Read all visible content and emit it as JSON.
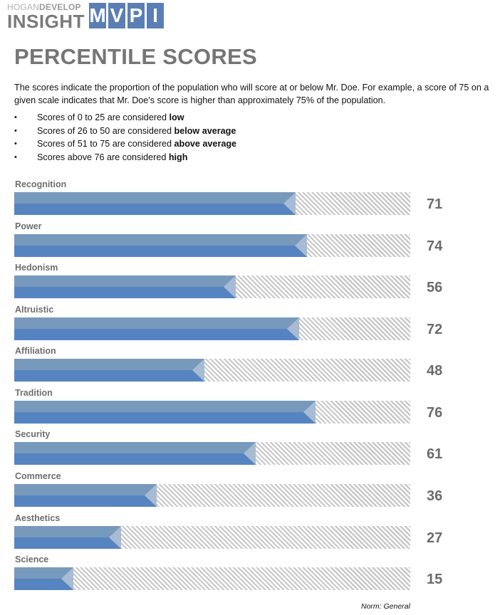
{
  "logo": {
    "top_light": "HOGAN",
    "top_bold": "DEVELOP",
    "bottom": "INSIGHT",
    "letters": [
      "M",
      "V",
      "P",
      "I"
    ]
  },
  "page": {
    "title": "PERCENTILE SCORES",
    "intro": "The scores indicate the proportion of the population who will score at or below Mr. Doe. For example, a score of 75 on a given scale indicates that Mr. Doe's score is higher than approximately 75% of the population.",
    "bullets": [
      {
        "text": "Scores of 0 to 25 are considered ",
        "bold": "low"
      },
      {
        "text": "Scores of 26 to 50 are considered ",
        "bold": "below average"
      },
      {
        "text": "Scores of 51 to 75 are considered ",
        "bold": "above average"
      },
      {
        "text": "Scores above 76 are considered ",
        "bold": "high"
      }
    ],
    "norm": "Norm: General"
  },
  "colors": {
    "bar_top": "#7799bb",
    "bar_bottom": "#5684c1",
    "bar_tip": "#a8bbd4",
    "hatch": "#c8c8c8",
    "label": "#6e6e6e",
    "logo_blue": "#5b7fb4"
  },
  "chart_data": {
    "type": "bar",
    "orientation": "horizontal",
    "title": "PERCENTILE SCORES",
    "categories": [
      "Recognition",
      "Power",
      "Hedonism",
      "Altruistic",
      "Affiliation",
      "Tradition",
      "Security",
      "Commerce",
      "Aesthetics",
      "Science"
    ],
    "values": [
      71,
      74,
      56,
      72,
      48,
      76,
      61,
      36,
      27,
      15
    ],
    "xlim": [
      0,
      100
    ],
    "xlabel": "",
    "ylabel": "",
    "grid": false,
    "legend": null,
    "value_labels": true,
    "annotations": [
      "Norm: General"
    ]
  }
}
